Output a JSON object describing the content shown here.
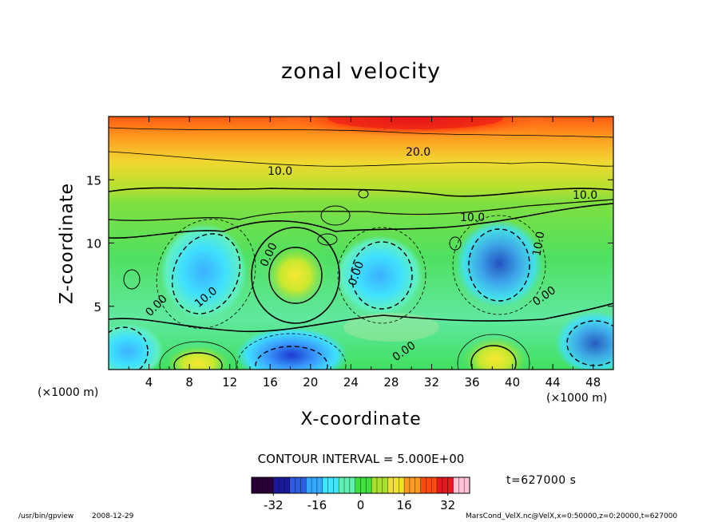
{
  "chart_data": {
    "type": "heatmap",
    "title": "zonal velocity",
    "xlabel": "X-coordinate",
    "ylabel": "Z-coordinate",
    "x_unit": "(×1000 m)",
    "y_unit": "(×1000 m)",
    "x_ticks": [
      4,
      8,
      12,
      16,
      20,
      24,
      28,
      32,
      36,
      40,
      44,
      48
    ],
    "y_ticks": [
      5,
      10,
      15
    ],
    "xlim": [
      0,
      50
    ],
    "ylim": [
      0,
      20
    ],
    "contour_interval_text": "CONTOUR INTERVAL = 5.000E+00",
    "contour_labels": [
      "20.0",
      "10.0",
      "10.0",
      "10.0",
      "0.00",
      "0.00",
      "0.00",
      "0.00",
      "0.00",
      "0.00",
      "10.0",
      "10.0"
    ],
    "colorbar": {
      "ticks": [
        -32,
        -16,
        0,
        16,
        32
      ],
      "range": [
        -40,
        40
      ],
      "colors": [
        "#2a0038",
        "#1a1a9a",
        "#2f5be0",
        "#35a8ff",
        "#3ee5ff",
        "#5ef0b0",
        "#3ee040",
        "#a8e030",
        "#f0e030",
        "#ff9a20",
        "#ff4a10",
        "#e81820",
        "#ffc0d8"
      ]
    }
  },
  "annotations": {
    "time": "t=627000 s",
    "program": "/usr/bin/gpview",
    "date": "2008-12-29",
    "file": "MarsCond_VelX.nc@VelX,x=0:50000,z=0:20000,t=627000"
  }
}
